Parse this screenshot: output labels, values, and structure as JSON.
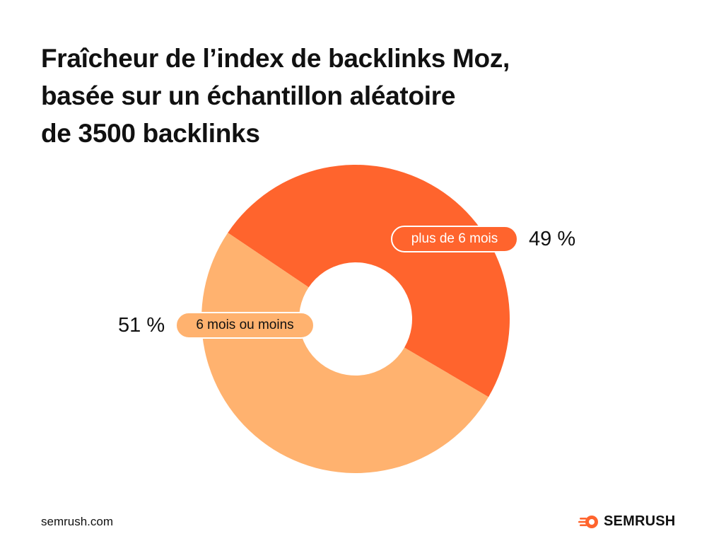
{
  "title": "Fraîcheur de l’index de backlinks Moz,\nbasée sur un échantillon aléatoire\nde 3500 backlinks",
  "chart_data": {
    "type": "pie",
    "donut": true,
    "title": "Fraîcheur de l’index de backlinks Moz,\nbasée sur un échantillon aléatoire\nde 3500 backlinks",
    "slices": [
      {
        "label": "plus de 6 mois",
        "value": 49,
        "value_label": "49 %",
        "color": "#ff642d"
      },
      {
        "label": "6 mois ou moins",
        "value": 51,
        "value_label": "51 %",
        "color": "#ffb26f"
      }
    ],
    "legend": "none"
  },
  "footer": {
    "site": "semrush.com",
    "brand": "SEMRUSH",
    "brand_icon": "semrush-flame-icon",
    "brand_color": "#ff642d"
  }
}
